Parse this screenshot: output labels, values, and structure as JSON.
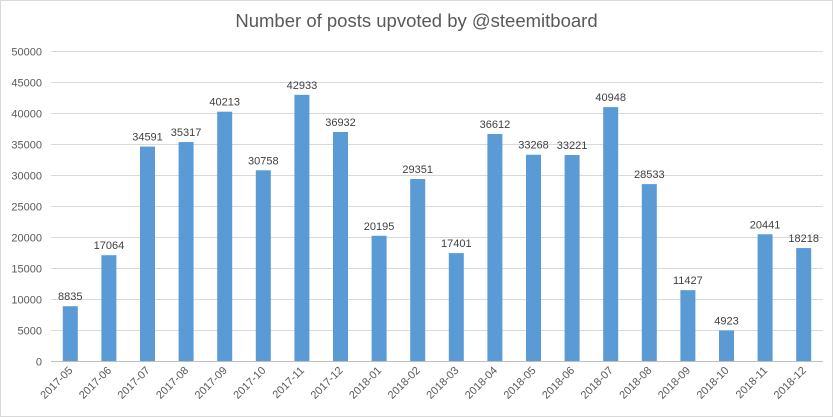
{
  "chart_data": {
    "type": "bar",
    "title": "Number of posts upvoted by @steemitboard",
    "xlabel": "",
    "ylabel": "",
    "ylim": [
      0,
      50000
    ],
    "y_ticks": [
      0,
      5000,
      10000,
      15000,
      20000,
      25000,
      30000,
      35000,
      40000,
      45000,
      50000
    ],
    "grid": true,
    "legend": "none",
    "bar_color": "#5b9bd5",
    "categories": [
      "2017-05",
      "2017-06",
      "2017-07",
      "2017-08",
      "2017-09",
      "2017-10",
      "2017-11",
      "2017-12",
      "2018-01",
      "2018-02",
      "2018-03",
      "2018-04",
      "2018-05",
      "2018-06",
      "2018-07",
      "2018-08",
      "2018-09",
      "2018-10",
      "2018-11",
      "2018-12"
    ],
    "values": [
      8835,
      17064,
      34591,
      35317,
      40213,
      30758,
      42933,
      36932,
      20195,
      29351,
      17401,
      36612,
      33268,
      33221,
      40948,
      28533,
      11427,
      4923,
      20441,
      18218
    ]
  }
}
